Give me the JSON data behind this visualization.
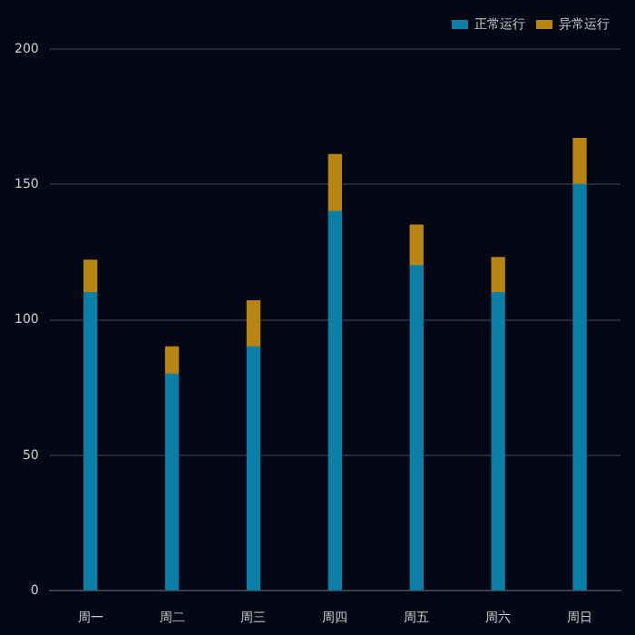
{
  "chart_data": {
    "type": "bar",
    "stacked": true,
    "categories": [
      "周一",
      "周二",
      "周三",
      "周四",
      "周五",
      "周六",
      "周日"
    ],
    "series": [
      {
        "name": "正常运行",
        "color": "#0c7fa6",
        "values": [
          110,
          80,
          90,
          140,
          120,
          110,
          150
        ]
      },
      {
        "name": "异常运行",
        "color": "#b88512",
        "values": [
          12,
          10,
          17,
          21,
          15,
          13,
          17
        ]
      }
    ],
    "ylim": [
      0,
      200
    ],
    "yticks": [
      0,
      50,
      100,
      150,
      200
    ],
    "grid": "y",
    "legend": "top right"
  }
}
